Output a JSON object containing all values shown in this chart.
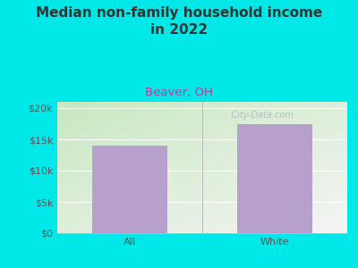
{
  "title": "Median non-family household income\nin 2022",
  "subtitle": "Beaver, OH",
  "categories": [
    "All",
    "White"
  ],
  "values": [
    14000,
    17500
  ],
  "bar_color": "#b8a0cc",
  "outer_bg": "#00e8e8",
  "plot_bg_topleft": "#c8e8c0",
  "plot_bg_bottomright": "#f5f5f5",
  "title_color": "#333333",
  "subtitle_color": "#cc3399",
  "axis_label_color": "#555555",
  "yticks": [
    0,
    5000,
    10000,
    15000,
    20000
  ],
  "ytick_labels": [
    "$0",
    "$5k",
    "$10k",
    "$15k",
    "$20k"
  ],
  "ylim": [
    0,
    21000
  ],
  "title_fontsize": 11,
  "subtitle_fontsize": 9.5,
  "tick_fontsize": 8,
  "watermark": "  City-Data.com",
  "watermark_color": "#b0b8c0"
}
